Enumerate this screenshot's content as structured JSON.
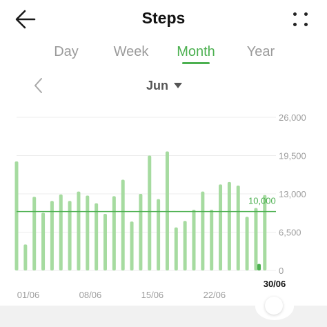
{
  "header": {
    "title": "Steps",
    "back_icon": "arrow-left-icon",
    "more_icon": "more-dots-icon"
  },
  "tabs": [
    {
      "label": "Day",
      "active": false
    },
    {
      "label": "Week",
      "active": false
    },
    {
      "label": "Month",
      "active": true
    },
    {
      "label": "Year",
      "active": false
    }
  ],
  "period": {
    "label": "Jun",
    "prev_icon": "chevron-left-icon",
    "dropdown_icon": "caret-down-icon"
  },
  "colors": {
    "accent": "#4cb050",
    "bar": "#a6dba0",
    "bar_selected": "#4cb050",
    "grid": "#ececec",
    "axis_text": "#9e9e9e"
  },
  "chart_data": {
    "type": "bar",
    "categories": [
      "01/06",
      "02/06",
      "03/06",
      "04/06",
      "05/06",
      "06/06",
      "07/06",
      "08/06",
      "09/06",
      "10/06",
      "11/06",
      "12/06",
      "13/06",
      "14/06",
      "15/06",
      "16/06",
      "17/06",
      "18/06",
      "19/06",
      "20/06",
      "21/06",
      "22/06",
      "23/06",
      "24/06",
      "25/06",
      "26/06",
      "27/06",
      "28/06",
      "29/06",
      "30/06"
    ],
    "values": [
      18500,
      4400,
      12500,
      9800,
      11800,
      12900,
      11800,
      13400,
      12700,
      11400,
      9600,
      12600,
      15400,
      8300,
      13000,
      19500,
      12100,
      20200,
      7300,
      8400,
      10300,
      13400,
      10300,
      14600,
      15000,
      14400,
      9100,
      10600,
      12800,
      1100
    ],
    "x_tick_labels": [
      "01/06",
      "08/06",
      "15/06",
      "22/06"
    ],
    "selected_label": "30/06",
    "ylim": [
      0,
      26000
    ],
    "y_tick_labels": [
      "26,000",
      "19,500",
      "13,000",
      "6,500",
      "0"
    ],
    "y_ticks": [
      26000,
      19500,
      13000,
      6500,
      0
    ],
    "goal": {
      "value": 10000,
      "label": "10,000"
    },
    "grid": true
  }
}
